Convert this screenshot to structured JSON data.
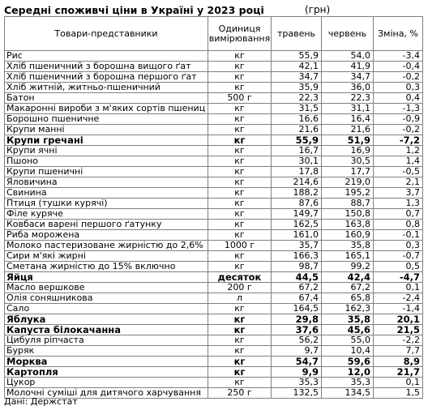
{
  "title": "Середні споживчі ціни в Україні у 2023 році",
  "unit_note": "(грн)",
  "headers": {
    "product": "Товари-представники",
    "unit": "Одиниця вимірювання",
    "may": "травень",
    "june": "червень",
    "change": "Зміна, %"
  },
  "rows": [
    {
      "name": "Рис",
      "unit": "кг",
      "may": "55,9",
      "june": "54,0",
      "change": "-3,4",
      "bold": false
    },
    {
      "name": "Хліб пшеничний з борошна вищого ґат",
      "unit": "кг",
      "may": "42,1",
      "june": "41,9",
      "change": "-0,4",
      "bold": false
    },
    {
      "name": "Хліб пшеничний з борошна першого ґат",
      "unit": "кг",
      "may": "34,7",
      "june": "34,7",
      "change": "-0,2",
      "bold": false
    },
    {
      "name": "Хліб житній, житньо-пшеничний",
      "unit": "кг",
      "may": "35,9",
      "june": "36,0",
      "change": "0,3",
      "bold": false
    },
    {
      "name": "Батон",
      "unit": "500 г",
      "may": "22,3",
      "june": "22,3",
      "change": "0,4",
      "bold": false
    },
    {
      "name": "Макаронні вироби з м'яких сортів пшениц",
      "unit": "кг",
      "may": "31,5",
      "june": "31,1",
      "change": "-1,3",
      "bold": false
    },
    {
      "name": "Борошно пшеничне",
      "unit": "кг",
      "may": "16,6",
      "june": "16,4",
      "change": "-0,9",
      "bold": false
    },
    {
      "name": "Крупи манні",
      "unit": "кг",
      "may": "21,6",
      "june": "21,6",
      "change": "-0,2",
      "bold": false
    },
    {
      "name": "Крупи гречані",
      "unit": "кг",
      "may": "55,9",
      "june": "51,9",
      "change": "-7,2",
      "bold": true
    },
    {
      "name": "Крупи ячні",
      "unit": "кг",
      "may": "16,7",
      "june": "16,9",
      "change": "1,2",
      "bold": false
    },
    {
      "name": "Пшоно",
      "unit": "кг",
      "may": "30,1",
      "june": "30,5",
      "change": "1,4",
      "bold": false
    },
    {
      "name": "Крупи пшеничні",
      "unit": "кг",
      "may": "17,8",
      "june": "17,7",
      "change": "-0,5",
      "bold": false
    },
    {
      "name": "Яловичина",
      "unit": "кг",
      "may": "214,6",
      "june": "219,0",
      "change": "2,1",
      "bold": false
    },
    {
      "name": "Свинина",
      "unit": "кг",
      "may": "188,2",
      "june": "195,2",
      "change": "3,7",
      "bold": false
    },
    {
      "name": "Птиця (тушки курячі)",
      "unit": "кг",
      "may": "87,6",
      "june": "88,7",
      "change": "1,3",
      "bold": false
    },
    {
      "name": "Філе куряче",
      "unit": "кг",
      "may": "149,7",
      "june": "150,8",
      "change": "0,7",
      "bold": false
    },
    {
      "name": "Ковбаси варені першого ґатунку",
      "unit": "кг",
      "may": "162,5",
      "june": "163,8",
      "change": "0,8",
      "bold": false
    },
    {
      "name": "Риба морожена",
      "unit": "кг",
      "may": "161,0",
      "june": "160,9",
      "change": "-0,1",
      "bold": false
    },
    {
      "name": "Молоко пастеризоване жирністю до 2,6%",
      "unit": "1000 г",
      "may": "35,7",
      "june": "35,8",
      "change": "0,3",
      "bold": false
    },
    {
      "name": "Сири м'якi жирнi",
      "unit": "кг",
      "may": "166,3",
      "june": "165,1",
      "change": "-0,7",
      "bold": false
    },
    {
      "name": "Сметана жирністю до 15% включно",
      "unit": "кг",
      "may": "98,7",
      "june": "99,2",
      "change": "0,5",
      "bold": false
    },
    {
      "name": "Яйця",
      "unit": "десяток",
      "may": "44,5",
      "june": "42,4",
      "change": "-4,7",
      "bold": true
    },
    {
      "name": "Масло вершкове",
      "unit": "200 г",
      "may": "67,2",
      "june": "67,2",
      "change": "0,1",
      "bold": false
    },
    {
      "name": "Олія соняшникова",
      "unit": "л",
      "may": "67,4",
      "june": "65,8",
      "change": "-2,4",
      "bold": false
    },
    {
      "name": "Сало",
      "unit": "кг",
      "may": "164,5",
      "june": "162,3",
      "change": "-1,4",
      "bold": false
    },
    {
      "name": "Яблука",
      "unit": "кг",
      "may": "29,8",
      "june": "35,8",
      "change": "20,1",
      "bold": true
    },
    {
      "name": "Капуста білокачанна",
      "unit": "кг",
      "may": "37,6",
      "june": "45,6",
      "change": "21,5",
      "bold": true
    },
    {
      "name": "Цибуля ріпчаста",
      "unit": "кг",
      "may": "56,2",
      "june": "55,0",
      "change": "-2,2",
      "bold": false
    },
    {
      "name": "Буряк",
      "unit": "кг",
      "may": "9,7",
      "june": "10,4",
      "change": "7,7",
      "bold": false
    },
    {
      "name": "Морква",
      "unit": "кг",
      "may": "54,7",
      "june": "59,6",
      "change": "8,9",
      "bold": true
    },
    {
      "name": "Картопля",
      "unit": "кг",
      "may": "9,9",
      "june": "12,0",
      "change": "21,7",
      "bold": true
    },
    {
      "name": "Цукор",
      "unit": "кг",
      "may": "35,3",
      "june": "35,3",
      "change": "0,1",
      "bold": false
    },
    {
      "name": "Молочні суміші для дитячого харчування",
      "unit": "250 г",
      "may": "132,5",
      "june": "134,5",
      "change": "1,5",
      "bold": false
    }
  ],
  "source": "Дані: Держстат"
}
